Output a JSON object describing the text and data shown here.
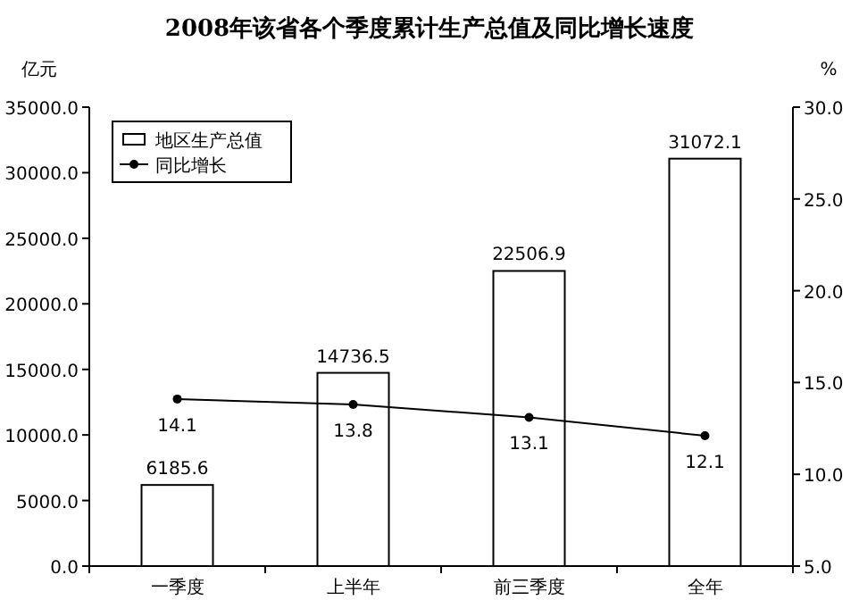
{
  "chart_data": {
    "type": "bar",
    "title": "2008年该省各个季度累计生产总值及同比增长速度",
    "ylabel": "亿元",
    "y2label": "%",
    "categories": [
      "一季度",
      "上半年",
      "前三季度",
      "全年"
    ],
    "series": [
      {
        "name": "地区生产总值",
        "color": "#ffffff",
        "values": [
          6185.6,
          14736.5,
          22506.9,
          31072.1
        ]
      },
      {
        "name": "同比增长",
        "type": "line",
        "axis": "y2",
        "color": "#000000",
        "marker": "circle",
        "values": [
          14.1,
          13.8,
          13.1,
          12.1
        ]
      }
    ],
    "ylim": [
      0,
      35000
    ],
    "yticks": [
      {
        "value": 0,
        "label": "0.0"
      },
      {
        "value": 5000,
        "label": "5000.0"
      },
      {
        "value": 10000,
        "label": "10000.0"
      },
      {
        "value": 15000,
        "label": "15000.0"
      },
      {
        "value": 20000,
        "label": "20000.0"
      },
      {
        "value": 25000,
        "label": "25000.0"
      },
      {
        "value": 30000,
        "label": "30000.0"
      },
      {
        "value": 35000,
        "label": "35000.0"
      }
    ],
    "y2lim": [
      5,
      30
    ],
    "y2ticks": [
      {
        "value": 5,
        "label": "5.0"
      },
      {
        "value": 10,
        "label": "10.0"
      },
      {
        "value": 15,
        "label": "15.0"
      },
      {
        "value": 20,
        "label": "20.0"
      },
      {
        "value": 25,
        "label": "25.0"
      },
      {
        "value": 30,
        "label": "30.0"
      }
    ],
    "data_labels": true,
    "legend": "top left",
    "grid": false
  }
}
